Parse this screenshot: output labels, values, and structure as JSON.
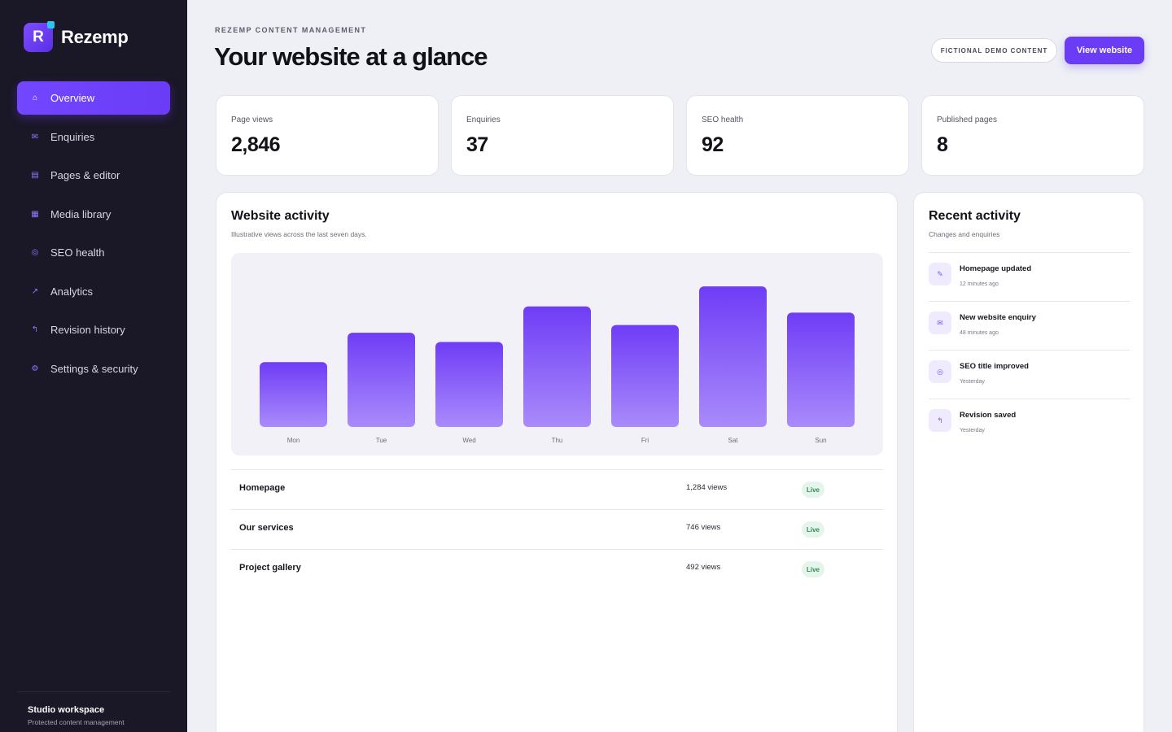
{
  "brand": {
    "logo_letter": "R",
    "name": "Rezemp"
  },
  "sidebar": {
    "items": [
      {
        "label": "Overview",
        "icon": "⌂",
        "active": true
      },
      {
        "label": "Enquiries",
        "icon": "✉",
        "active": false
      },
      {
        "label": "Pages & editor",
        "icon": "▤",
        "active": false
      },
      {
        "label": "Media library",
        "icon": "▦",
        "active": false
      },
      {
        "label": "SEO health",
        "icon": "◎",
        "active": false
      },
      {
        "label": "Analytics",
        "icon": "↗",
        "active": false
      },
      {
        "label": "Revision history",
        "icon": "↰",
        "active": false
      },
      {
        "label": "Settings & security",
        "icon": "⚙",
        "active": false
      }
    ],
    "workspace": {
      "title": "Studio workspace",
      "subtitle": "Protected content management"
    }
  },
  "header": {
    "eyebrow": "REZEMP CONTENT MANAGEMENT",
    "title": "Your website at a glance",
    "demo_pill": "FICTIONAL DEMO CONTENT",
    "view_button": "View website"
  },
  "stats": [
    {
      "label": "Page views",
      "value": "2,846"
    },
    {
      "label": "Enquiries",
      "value": "37"
    },
    {
      "label": "SEO health",
      "value": "92"
    },
    {
      "label": "Published pages",
      "value": "8"
    }
  ],
  "activity": {
    "title": "Website activity",
    "subtitle": "Illustrative views across the last seven days."
  },
  "chart_data": {
    "type": "bar",
    "categories": [
      "Mon",
      "Tue",
      "Wed",
      "Thu",
      "Fri",
      "Sat",
      "Sun"
    ],
    "values": [
      42,
      61,
      55,
      78,
      66,
      91,
      74
    ],
    "ylim": [
      0,
      100
    ],
    "grid": false,
    "colors": {
      "top": "#6f3cf6",
      "bottom": "#a98bfb"
    }
  },
  "pages": [
    {
      "name": "Homepage",
      "views": "1,284 views",
      "status": "Live"
    },
    {
      "name": "Our services",
      "views": "746 views",
      "status": "Live"
    },
    {
      "name": "Project gallery",
      "views": "492 views",
      "status": "Live"
    }
  ],
  "recent": {
    "title": "Recent activity",
    "subtitle": "Changes and enquiries",
    "items": [
      {
        "title": "Homepage updated",
        "time": "12 minutes ago",
        "icon": "✎"
      },
      {
        "title": "New website enquiry",
        "time": "48 minutes ago",
        "icon": "✉"
      },
      {
        "title": "SEO title improved",
        "time": "Yesterday",
        "icon": "◎"
      },
      {
        "title": "Revision saved",
        "time": "Yesterday",
        "icon": "↰"
      }
    ]
  },
  "colors": {
    "accent": "#6a3cf5",
    "sidebar": "#1a1726",
    "background": "#eef0f5",
    "live": "#2f8f53"
  }
}
